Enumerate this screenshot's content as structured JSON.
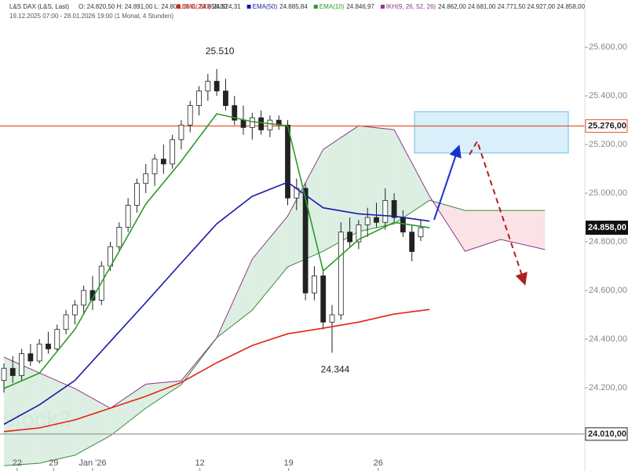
{
  "chart_data": {
    "type": "candlestick",
    "header": {
      "instrument": "L&S DAX (L&S, Last)",
      "ohlc_label": "O: 24.820,50  H: 24.891,00  L: 24.803,00  C: 24.858,00",
      "period": "19.12.2025 07:00 - 28.01.2026 19:00  (1 Monat, 4 Stunden)"
    },
    "watermark": "stock3",
    "xlim": [
      -0.44,
      65.5
    ],
    "ylim": [
      23858,
      25794
    ],
    "xticks": [
      {
        "value": 1.5,
        "label": "22"
      },
      {
        "value": 5.6,
        "label": "29"
      },
      {
        "value": 10,
        "label": "Jan '26"
      },
      {
        "value": 22.1,
        "label": "12"
      },
      {
        "value": 32.1,
        "label": "19"
      },
      {
        "value": 42.2,
        "label": "26"
      }
    ],
    "yticks": [
      {
        "value": 24200,
        "label": "24.200,00"
      },
      {
        "value": 24400,
        "label": "24.400,00"
      },
      {
        "value": 24600,
        "label": "24.600,00"
      },
      {
        "value": 24800,
        "label": "24.800,00"
      },
      {
        "value": 25000,
        "label": "25.000,00"
      },
      {
        "value": 25200,
        "label": "25.200,00"
      },
      {
        "value": 25400,
        "label": "25.400,00"
      },
      {
        "value": 25600,
        "label": "25.600,00"
      }
    ],
    "candles": {
      "open": [
        24230,
        24280,
        24250,
        24340,
        24310,
        24380,
        24360,
        24440,
        24500,
        24540,
        24600,
        24560,
        24700,
        24780,
        24860,
        24950,
        25040,
        25080,
        25140,
        25120,
        25220,
        25280,
        25360,
        25420,
        25460,
        25420,
        25360,
        25300,
        25270,
        25310,
        25260,
        25300,
        25280,
        24980,
        25020,
        24590,
        24660,
        24470,
        24500,
        24840,
        24800,
        24870,
        24900,
        24880,
        24970,
        24900,
        24840,
        24820.5
      ],
      "high": [
        24300,
        24330,
        24360,
        24380,
        24400,
        24430,
        24460,
        24520,
        24560,
        24620,
        24660,
        24720,
        24800,
        24880,
        24980,
        25060,
        25120,
        25160,
        25200,
        25240,
        25300,
        25380,
        25440,
        25490,
        25510,
        25470,
        25400,
        25360,
        25330,
        25340,
        25320,
        25320,
        25300,
        25060,
        25040,
        24700,
        24690,
        24540,
        24880,
        24900,
        24890,
        24940,
        24960,
        25020,
        25000,
        24930,
        24870,
        24891
      ],
      "low": [
        24180,
        24220,
        24230,
        24290,
        24300,
        24340,
        24350,
        24420,
        24460,
        24500,
        24520,
        24540,
        24680,
        24760,
        24840,
        24920,
        25000,
        25030,
        25080,
        25100,
        25180,
        25250,
        25320,
        25380,
        25400,
        25340,
        25280,
        25240,
        25220,
        25240,
        25230,
        25260,
        24950,
        24930,
        24560,
        24560,
        24440,
        24344,
        24480,
        24780,
        24770,
        24820,
        24860,
        24850,
        24880,
        24820,
        24720,
        24803
      ],
      "close": [
        24280,
        24250,
        24340,
        24310,
        24380,
        24360,
        24440,
        24500,
        24540,
        24600,
        24560,
        24700,
        24780,
        24860,
        24950,
        25040,
        25080,
        25140,
        25120,
        25220,
        25280,
        25360,
        25420,
        25460,
        25420,
        25360,
        25300,
        25270,
        25310,
        25260,
        25300,
        25280,
        24980,
        25020,
        24590,
        24660,
        24470,
        24500,
        24840,
        24800,
        24870,
        24900,
        24880,
        24970,
        24900,
        24840,
        24760,
        24858
      ]
    },
    "series": [
      {
        "name": "EMA(200)",
        "value_label": "24.524,31",
        "color": "#e2231a",
        "x": [
          0,
          4,
          8,
          12,
          16,
          20,
          24,
          28,
          32,
          36,
          40,
          44,
          48
        ],
        "values": [
          24020,
          24035,
          24068,
          24116,
          24165,
          24222,
          24303,
          24374,
          24422,
          24445,
          24470,
          24503,
          24522
        ]
      },
      {
        "name": "EMA(50)",
        "value_label": "24.885,84",
        "color": "#1a1aa8",
        "x": [
          0,
          4,
          8,
          12,
          16,
          20,
          24,
          28,
          32,
          36,
          40,
          44,
          48
        ],
        "values": [
          24050,
          24130,
          24230,
          24390,
          24550,
          24713,
          24874,
          24987,
          25045,
          24940,
          24915,
          24905,
          24885
        ]
      },
      {
        "name": "EMA(10)",
        "value_label": "24.846,97",
        "color": "#2a9a2a",
        "x": [
          0,
          4,
          8,
          12,
          16,
          20,
          24,
          28,
          32,
          36,
          40,
          44,
          48
        ],
        "values": [
          24197,
          24260,
          24440,
          24697,
          24955,
          25132,
          25326,
          25294,
          25277,
          24680,
          24810,
          24880,
          24858
        ]
      }
    ],
    "ichimoku": {
      "name": "IKH(9, 26, 52, 26)",
      "value_label": "24.862,00  24.681,00  24.771,50  24.927,00  24.858,00",
      "span_a_color": "#3d8a3d",
      "span_b_color": "#8a3a8a",
      "x": [
        0,
        4,
        8,
        12,
        16,
        20,
        24,
        28,
        32,
        36,
        40,
        44,
        48,
        52,
        56,
        60,
        61
      ],
      "span_a": [
        23880,
        23890,
        23923,
        24003,
        24116,
        24213,
        24406,
        24519,
        24697,
        24761,
        24842,
        24874,
        24971,
        24929,
        24929,
        24929,
        24929
      ],
      "span_b": [
        24326,
        24261,
        24197,
        24116,
        24215,
        24229,
        24406,
        24729,
        24906,
        25180,
        25277,
        25261,
        24987,
        24761,
        24810,
        24777,
        24768
      ]
    },
    "hlines": [
      {
        "value": 25276,
        "label": "25.276,00",
        "color": "#e8582c"
      },
      {
        "value": 24010,
        "label": "24.010,00",
        "color": "#999999"
      }
    ],
    "last_price": {
      "value": 24858,
      "label": "24.858,00"
    },
    "zone": {
      "from": 25165,
      "to": 25335,
      "color": "#bfe6f7"
    },
    "annotations": [
      {
        "text": "25.510",
        "x": 24,
        "value": 25510,
        "position": "above"
      },
      {
        "text": "24.344",
        "x": 37,
        "value": 24344,
        "position": "below"
      }
    ]
  }
}
